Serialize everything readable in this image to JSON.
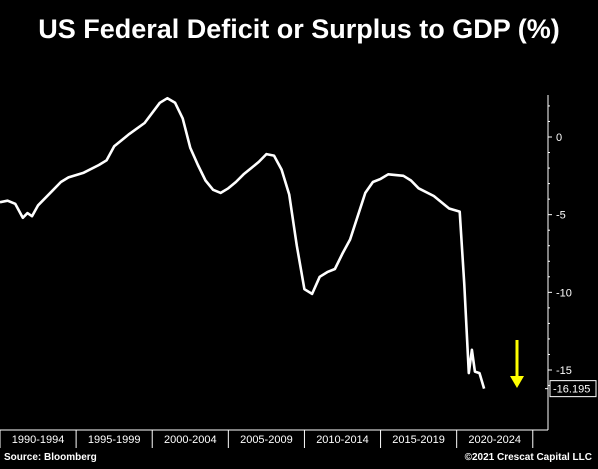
{
  "title": "US Federal Deficit or Surplus to GDP (%)",
  "footer": {
    "source": "Source: Bloomberg",
    "copyright": "©2021 Crescat Capital LLC"
  },
  "colors": {
    "background": "#000000",
    "line": "#ffffff",
    "arrow": "#ffff00",
    "axis": "#ffffff"
  },
  "chart_data": {
    "type": "line",
    "title": "US Federal Deficit or Surplus to GDP (%)",
    "xlabel": "",
    "ylabel": "",
    "xlim": [
      1989.5,
      2025.5
    ],
    "ylim": [
      -16.5,
      3
    ],
    "y_ticks": [
      0,
      -5,
      -10,
      -15
    ],
    "y_tick_labels": [
      "0",
      "-5",
      "-10",
      "-15"
    ],
    "x_bins": [
      "1990-1994",
      "1995-1999",
      "2000-2004",
      "2005-2009",
      "2010-2014",
      "2015-2019",
      "2020-2024"
    ],
    "grid": false,
    "last_value_label": "-16.195",
    "series": [
      {
        "values": [
          [
            1989.5,
            -4.2
          ],
          [
            1990.0,
            -4.1
          ],
          [
            1990.5,
            -4.3
          ],
          [
            1991.0,
            -5.2
          ],
          [
            1991.3,
            -4.9
          ],
          [
            1991.6,
            -5.1
          ],
          [
            1992.0,
            -4.4
          ],
          [
            1992.5,
            -3.9
          ],
          [
            1993.0,
            -3.4
          ],
          [
            1993.5,
            -2.9
          ],
          [
            1994.0,
            -2.6
          ],
          [
            1995.0,
            -2.3
          ],
          [
            1996.0,
            -1.8
          ],
          [
            1996.5,
            -1.5
          ],
          [
            1997.0,
            -0.6
          ],
          [
            1998.0,
            0.2
          ],
          [
            1999.0,
            0.9
          ],
          [
            2000.0,
            2.2
          ],
          [
            2000.5,
            2.5
          ],
          [
            2001.0,
            2.2
          ],
          [
            2001.5,
            1.2
          ],
          [
            2002.0,
            -0.7
          ],
          [
            2002.5,
            -1.8
          ],
          [
            2003.0,
            -2.8
          ],
          [
            2003.5,
            -3.4
          ],
          [
            2004.0,
            -3.6
          ],
          [
            2004.5,
            -3.3
          ],
          [
            2005.0,
            -2.9
          ],
          [
            2005.5,
            -2.4
          ],
          [
            2006.0,
            -2.0
          ],
          [
            2006.5,
            -1.6
          ],
          [
            2007.0,
            -1.1
          ],
          [
            2007.5,
            -1.2
          ],
          [
            2008.0,
            -2.1
          ],
          [
            2008.5,
            -3.7
          ],
          [
            2009.0,
            -7.0
          ],
          [
            2009.5,
            -9.8
          ],
          [
            2010.0,
            -10.1
          ],
          [
            2010.5,
            -9.0
          ],
          [
            2011.0,
            -8.7
          ],
          [
            2011.5,
            -8.5
          ],
          [
            2012.0,
            -7.5
          ],
          [
            2012.5,
            -6.6
          ],
          [
            2013.0,
            -5.1
          ],
          [
            2013.5,
            -3.6
          ],
          [
            2014.0,
            -2.9
          ],
          [
            2014.5,
            -2.7
          ],
          [
            2015.0,
            -2.4
          ],
          [
            2016.0,
            -2.5
          ],
          [
            2016.5,
            -2.8
          ],
          [
            2017.0,
            -3.3
          ],
          [
            2018.0,
            -3.8
          ],
          [
            2019.0,
            -4.6
          ],
          [
            2019.7,
            -4.8
          ],
          [
            2020.0,
            -9.5
          ],
          [
            2020.3,
            -15.2
          ],
          [
            2020.5,
            -13.7
          ],
          [
            2020.7,
            -15.1
          ],
          [
            2021.0,
            -15.2
          ],
          [
            2021.3,
            -16.2
          ]
        ]
      }
    ],
    "annotations": [
      {
        "type": "arrow",
        "direction": "down",
        "color": "yellow",
        "x_range": "2020-2024"
      }
    ]
  }
}
